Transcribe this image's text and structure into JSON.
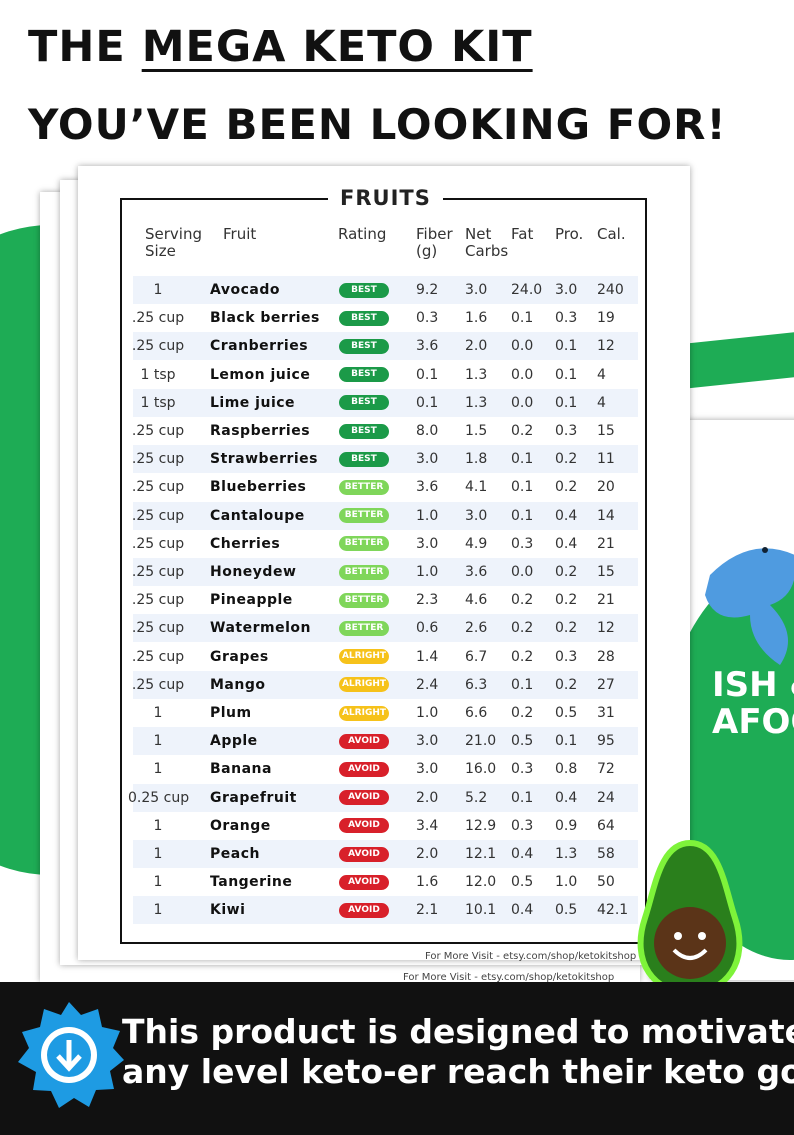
{
  "header": {
    "line1_prefix": "THE",
    "line1_highlight": "MEGA KETO KIT",
    "line2": "YOU’VE BEEN LOOKING FOR!"
  },
  "background_page": {
    "label_line1": "ISH &",
    "label_line2": "AFOO"
  },
  "table": {
    "title": "FRUITS",
    "columns": [
      "Serving Size",
      "Fruit",
      "Rating",
      "Fiber (g)",
      "Net Carbs",
      "Fat",
      "Pro.",
      "Cal."
    ],
    "rating_colors": {
      "BEST": "#1b9a48",
      "BETTER": "#7fd65a",
      "ALRIGHT": "#f6c21a",
      "AVOID": "#d8202a"
    },
    "rows": [
      [
        "1",
        "Avocado",
        "BEST",
        "9.2",
        "3.0",
        "24.0",
        "3.0",
        "240"
      ],
      [
        ".25 cup",
        "Black berries",
        "BEST",
        "0.3",
        "1.6",
        "0.1",
        "0.3",
        "19"
      ],
      [
        ".25 cup",
        "Cranberries",
        "BEST",
        "3.6",
        "2.0",
        "0.0",
        "0.1",
        "12"
      ],
      [
        "1 tsp",
        "Lemon juice",
        "BEST",
        "0.1",
        "1.3",
        "0.0",
        "0.1",
        "4"
      ],
      [
        "1 tsp",
        "Lime juice",
        "BEST",
        "0.1",
        "1.3",
        "0.0",
        "0.1",
        "4"
      ],
      [
        ".25 cup",
        "Raspberries",
        "BEST",
        "8.0",
        "1.5",
        "0.2",
        "0.3",
        "15"
      ],
      [
        ".25 cup",
        "Strawberries",
        "BEST",
        "3.0",
        "1.8",
        "0.1",
        "0.2",
        "11"
      ],
      [
        ".25 cup",
        "Blueberries",
        "BETTER",
        "3.6",
        "4.1",
        "0.1",
        "0.2",
        "20"
      ],
      [
        ".25 cup",
        "Cantaloupe",
        "BETTER",
        "1.0",
        "3.0",
        "0.1",
        "0.4",
        "14"
      ],
      [
        ".25 cup",
        "Cherries",
        "BETTER",
        "3.0",
        "4.9",
        "0.3",
        "0.4",
        "21"
      ],
      [
        ".25 cup",
        "Honeydew",
        "BETTER",
        "1.0",
        "3.6",
        "0.0",
        "0.2",
        "15"
      ],
      [
        ".25 cup",
        "Pineapple",
        "BETTER",
        "2.3",
        "4.6",
        "0.2",
        "0.2",
        "21"
      ],
      [
        ".25 cup",
        "Watermelon",
        "BETTER",
        "0.6",
        "2.6",
        "0.2",
        "0.2",
        "12"
      ],
      [
        ".25 cup",
        "Grapes",
        "ALRIGHT",
        "1.4",
        "6.7",
        "0.2",
        "0.3",
        "28"
      ],
      [
        ".25 cup",
        "Mango",
        "ALRIGHT",
        "2.4",
        "6.3",
        "0.1",
        "0.2",
        "27"
      ],
      [
        "1",
        "Plum",
        "ALRIGHT",
        "1.0",
        "6.6",
        "0.2",
        "0.5",
        "31"
      ],
      [
        "1",
        "Apple",
        "AVOID",
        "3.0",
        "21.0",
        "0.5",
        "0.1",
        "95"
      ],
      [
        "1",
        "Banana",
        "AVOID",
        "3.0",
        "16.0",
        "0.3",
        "0.8",
        "72"
      ],
      [
        "0.25 cup",
        "Grapefruit",
        "AVOID",
        "2.0",
        "5.2",
        "0.1",
        "0.4",
        "24"
      ],
      [
        "1",
        "Orange",
        "AVOID",
        "3.4",
        "12.9",
        "0.3",
        "0.9",
        "64"
      ],
      [
        "1",
        "Peach",
        "AVOID",
        "2.0",
        "12.1",
        "0.4",
        "1.3",
        "58"
      ],
      [
        "1",
        "Tangerine",
        "AVOID",
        "1.6",
        "12.0",
        "0.5",
        "1.0",
        "50"
      ],
      [
        "1",
        "Kiwi",
        "AVOID",
        "2.1",
        "10.1",
        "0.4",
        "0.5",
        "42.1"
      ]
    ]
  },
  "footer_front": "For More Visit - etsy.com/shop/ketokitshop",
  "footer_back": "For More Visit - etsy.com/shop/ketokitshop",
  "banner": {
    "line1": "This product is designed to motivate",
    "line2": "any level keto-er reach their keto goals"
  }
}
